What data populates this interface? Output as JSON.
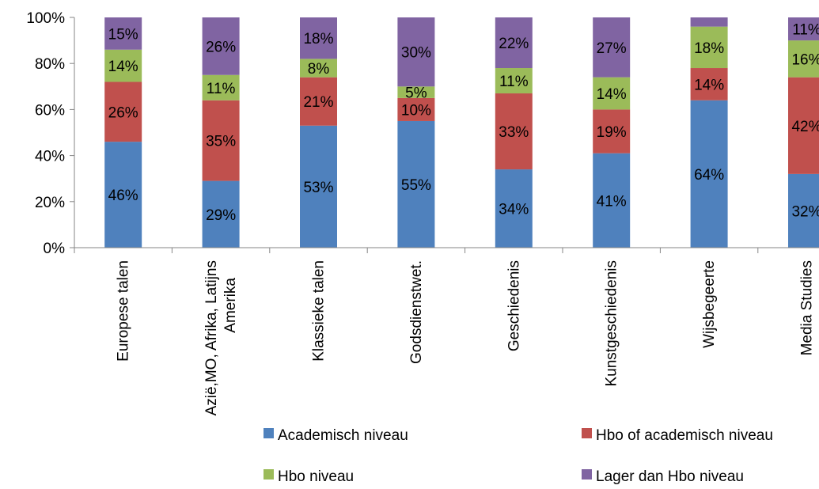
{
  "chart_data": {
    "type": "bar",
    "stacked": true,
    "percent": true,
    "categories": [
      "Europese talen",
      "Azië,MO, Afrika, Latijns Amerika",
      "Klassieke talen",
      "Godsdienstwet.",
      "Geschiedenis",
      "Kunstgeschiedenis",
      "Wijsbegeerte",
      "Media Studies"
    ],
    "series": [
      {
        "name": "Academisch niveau",
        "color": "#4f81bd",
        "values": [
          46,
          29,
          53,
          55,
          34,
          41,
          64,
          32
        ]
      },
      {
        "name": "Hbo of academisch niveau",
        "color": "#c0504d",
        "values": [
          26,
          35,
          21,
          10,
          33,
          19,
          14,
          42
        ]
      },
      {
        "name": "Hbo niveau",
        "color": "#9bbb59",
        "values": [
          14,
          11,
          8,
          5,
          11,
          14,
          18,
          16
        ]
      },
      {
        "name": "Lager dan Hbo niveau",
        "color": "#8064a2",
        "values": [
          15,
          26,
          18,
          30,
          22,
          27,
          5,
          11
        ]
      }
    ],
    "data_labels": [
      [
        "46%",
        "29%",
        "53%",
        "55%",
        "34%",
        "41%",
        "64%",
        "32%"
      ],
      [
        "26%",
        "35%",
        "21%",
        "10%",
        "33%",
        "19%",
        "14%",
        "42%"
      ],
      [
        "14%",
        "11%",
        "8%",
        "5%",
        "11%",
        "14%",
        "18%",
        "16%"
      ],
      [
        "15%",
        "26%",
        "18%",
        "30%",
        "22%",
        "27%",
        "",
        "11%"
      ]
    ],
    "y_ticks": [
      "0%",
      "20%",
      "40%",
      "60%",
      "80%",
      "100%"
    ],
    "ylim": [
      0,
      100
    ],
    "title": "",
    "xlabel": "",
    "ylabel": "",
    "grid": false,
    "legend_position": "bottom"
  }
}
